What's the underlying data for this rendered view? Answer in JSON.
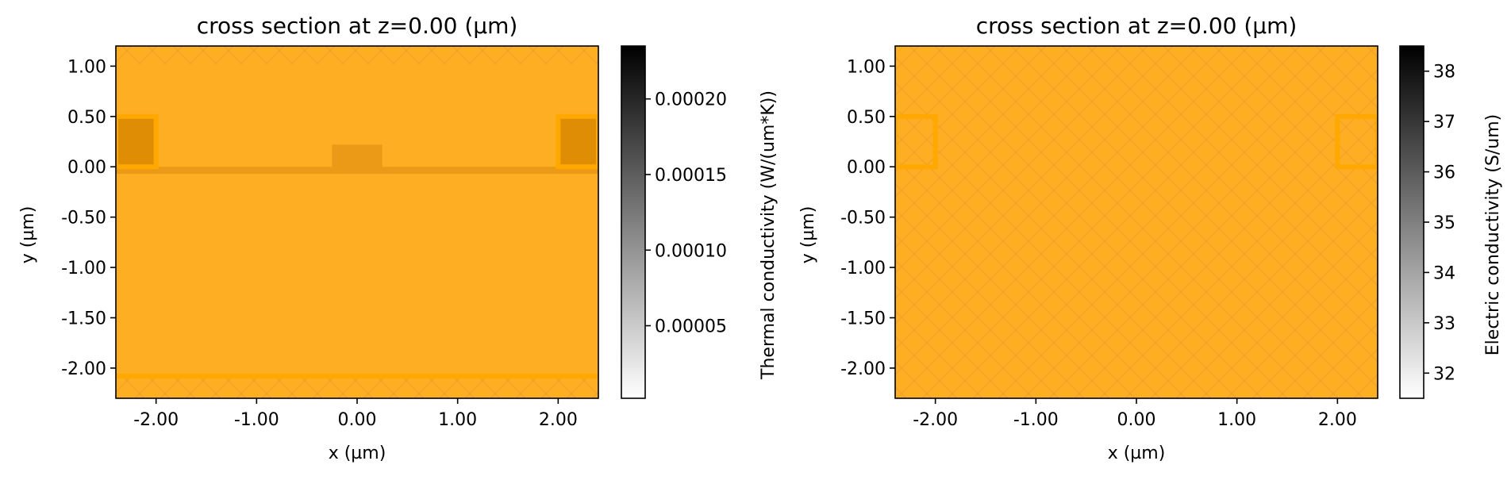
{
  "chart_data": [
    {
      "type": "heatmap",
      "title": "cross section at z=0.00 (µm)",
      "xlabel": "x (µm)",
      "ylabel": "y (µm)",
      "xlim": [
        -2.4,
        2.4
      ],
      "ylim": [
        -2.3,
        1.2
      ],
      "xticks": [
        -2,
        -1,
        0,
        1,
        2
      ],
      "xtick_labels": [
        "-2.00",
        "-1.00",
        "0.00",
        "1.00",
        "2.00"
      ],
      "yticks": [
        1,
        0.5,
        0,
        -0.5,
        -1,
        -1.5,
        -2
      ],
      "ytick_labels": [
        "1.00",
        "0.50",
        "0.00",
        "-0.50",
        "-1.00",
        "-1.50",
        "-2.00"
      ],
      "background_color": "#fdae22",
      "colorbar": {
        "label": "Thermal conductivity (W/(um*K))",
        "range": [
          2e-06,
          0.000235
        ],
        "ticks": [
          5e-05,
          0.0001,
          0.00015,
          0.0002
        ],
        "tick_labels": [
          "0.00005",
          "0.00010",
          "0.00015",
          "0.00020"
        ],
        "colormap": "gray_r"
      },
      "regions": [
        {
          "x": [
            -2.4,
            2.4
          ],
          "y": [
            -0.07,
            0.0
          ],
          "color": "#ea9a17"
        },
        {
          "x": [
            -0.25,
            0.25
          ],
          "y": [
            0.0,
            0.22
          ],
          "color": "#ea9a17"
        },
        {
          "x": [
            -2.4,
            -2.0
          ],
          "y": [
            0.0,
            0.5
          ],
          "color": "#df8d05"
        },
        {
          "x": [
            2.0,
            2.4
          ],
          "y": [
            0.0,
            0.5
          ],
          "color": "#df8d05"
        }
      ],
      "outlines": [
        {
          "x": [
            -2.4,
            -2.0
          ],
          "y": [
            0.0,
            0.5
          ],
          "color": "#ffa800"
        },
        {
          "x": [
            2.0,
            2.4
          ],
          "y": [
            0.0,
            0.5
          ],
          "color": "#ffa800"
        }
      ],
      "hlines": [
        {
          "y": -2.08,
          "color": "#ffa800"
        }
      ],
      "hatched_bands": [
        {
          "y": [
            1.02,
            1.2
          ]
        },
        {
          "y": [
            -2.3,
            -2.1
          ]
        }
      ]
    },
    {
      "type": "heatmap",
      "title": "cross section at z=0.00 (µm)",
      "xlabel": "x (µm)",
      "ylabel": "y (µm)",
      "xlim": [
        -2.4,
        2.4
      ],
      "ylim": [
        -2.3,
        1.2
      ],
      "xticks": [
        -2,
        -1,
        0,
        1,
        2
      ],
      "xtick_labels": [
        "-2.00",
        "-1.00",
        "0.00",
        "1.00",
        "2.00"
      ],
      "yticks": [
        1,
        0.5,
        0,
        -0.5,
        -1,
        -1.5,
        -2
      ],
      "ytick_labels": [
        "1.00",
        "0.50",
        "0.00",
        "-0.50",
        "-1.00",
        "-1.50",
        "-2.00"
      ],
      "background_color": "#fdae22",
      "colorbar": {
        "label": "Electric conductivity (S/um)",
        "range": [
          31.5,
          38.5
        ],
        "ticks": [
          32,
          33,
          34,
          35,
          36,
          37,
          38
        ],
        "tick_labels": [
          "32",
          "33",
          "34",
          "35",
          "36",
          "37",
          "38"
        ],
        "colormap": "gray_r"
      },
      "regions": [],
      "outlines": [
        {
          "x": [
            -2.4,
            -2.0
          ],
          "y": [
            0.0,
            0.5
          ],
          "color": "#ffa800"
        },
        {
          "x": [
            2.0,
            2.4
          ],
          "y": [
            0.0,
            0.5
          ],
          "color": "#ffa800"
        }
      ],
      "hlines": [],
      "hatched_bands": [
        {
          "y": [
            -2.3,
            1.2
          ]
        }
      ]
    }
  ]
}
